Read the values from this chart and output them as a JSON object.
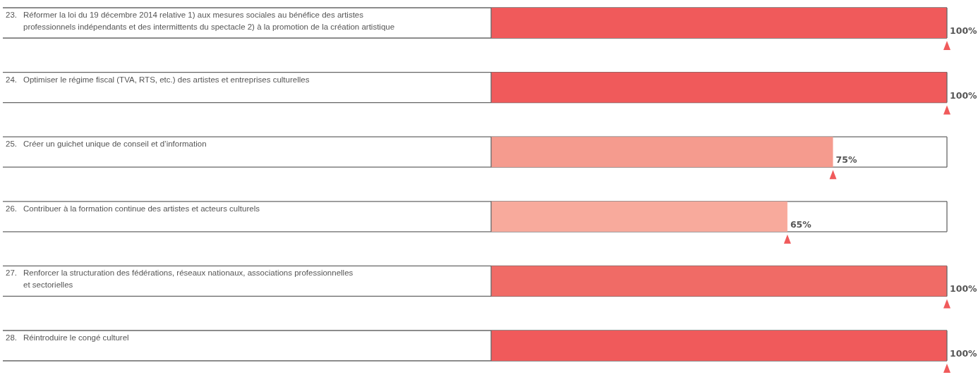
{
  "chart_data": {
    "type": "bar",
    "orientation": "horizontal",
    "categories": [
      "23. Réformer la loi du 19 décembre 2014 relative 1) aux mesures sociales au bénéfice des artistes professionnels indépendants et des intermittents du spectacle 2) à la promotion de la création artistique",
      "24. Optimiser le régime fiscal (TVA, RTS, etc.) des artistes et entreprises culturelles",
      "25. Créer un guichet unique de conseil et d’information",
      "26. Contribuer à la formation continue des artistes et acteurs culturels",
      "27. Renforcer la structuration des fédérations, réseaux nationaux, associations professionnelles et sectorielles",
      "28. Réintroduire le congé culturel"
    ],
    "values": [
      100,
      100,
      75,
      65,
      100,
      100
    ],
    "colors": [
      "#f05a5b",
      "#f05a5b",
      "#f59b8e",
      "#f8aa9c",
      "#f06b66",
      "#f05a5b"
    ],
    "value_labels": [
      "100%",
      "100%",
      "75%",
      "65%",
      "100%",
      "100%"
    ]
  }
}
